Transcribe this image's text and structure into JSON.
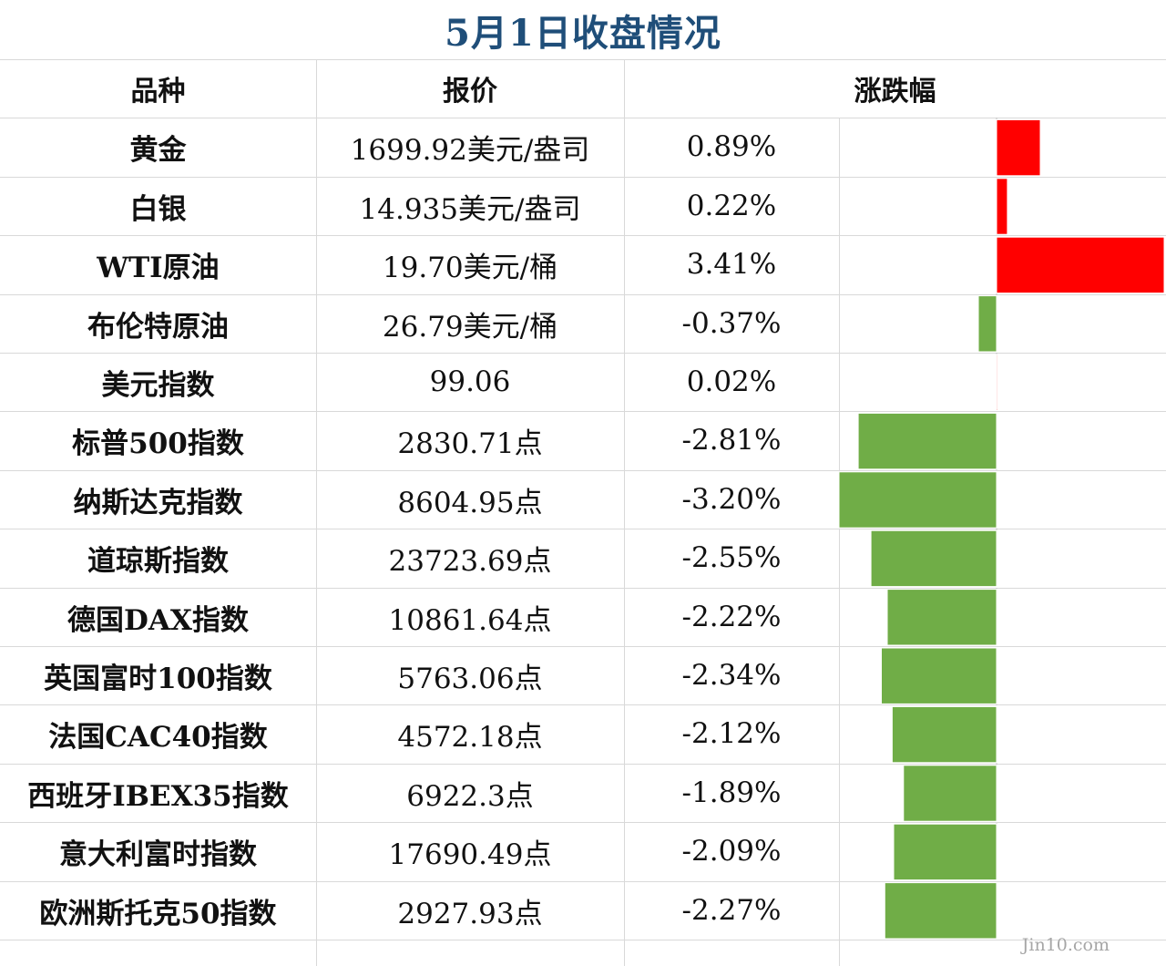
{
  "title": "5月1日收盘情况",
  "headers": {
    "name": "品种",
    "price": "报价",
    "change": "涨跌幅"
  },
  "watermark": "Jin10.com",
  "colors": {
    "title": "#1f4e79",
    "positive": "#ff0000",
    "negative": "#70ad47",
    "grid": "#d9d9d9"
  },
  "rows": [
    {
      "name": "黄金",
      "price": "1699.92美元/盎司",
      "change": "0.89%"
    },
    {
      "name": "白银",
      "price": "14.935美元/盎司",
      "change": "0.22%"
    },
    {
      "name": "WTI原油",
      "price": "19.70美元/桶",
      "change": "3.41%"
    },
    {
      "name": "布伦特原油",
      "price": "26.79美元/桶",
      "change": "-0.37%"
    },
    {
      "name": "美元指数",
      "price": "99.06",
      "change": "0.02%"
    },
    {
      "name": "标普500指数",
      "price": "2830.71点",
      "change": "-2.81%"
    },
    {
      "name": "纳斯达克指数",
      "price": "8604.95点",
      "change": "-3.20%"
    },
    {
      "name": "道琼斯指数",
      "price": "23723.69点",
      "change": "-2.55%"
    },
    {
      "name": "德国DAX指数",
      "price": "10861.64点",
      "change": "-2.22%"
    },
    {
      "name": "英国富时100指数",
      "price": "5763.06点",
      "change": "-2.34%"
    },
    {
      "name": "法国CAC40指数",
      "price": "4572.18点",
      "change": "-2.12%"
    },
    {
      "name": "西班牙IBEX35指数",
      "price": "6922.3点",
      "change": "-1.89%"
    },
    {
      "name": "意大利富时指数",
      "price": "17690.49点",
      "change": "-2.09%"
    },
    {
      "name": "欧洲斯托克50指数",
      "price": "2927.93点",
      "change": "-2.27%"
    }
  ],
  "chart_data": {
    "type": "bar",
    "orientation": "horizontal",
    "title": "5月1日收盘情况",
    "categories": [
      "黄金",
      "白银",
      "WTI原油",
      "布伦特原油",
      "美元指数",
      "标普500指数",
      "纳斯达克指数",
      "道琼斯指数",
      "德国DAX指数",
      "英国富时100指数",
      "法国CAC40指数",
      "西班牙IBEX35指数",
      "意大利富时指数",
      "欧洲斯托克50指数"
    ],
    "values": [
      0.89,
      0.22,
      3.41,
      -0.37,
      0.02,
      -2.81,
      -3.2,
      -2.55,
      -2.22,
      -2.34,
      -2.12,
      -1.89,
      -2.09,
      -2.27
    ],
    "unit": "%",
    "xlim": [
      -3.2,
      3.41
    ],
    "grid": false,
    "legend": "none"
  }
}
